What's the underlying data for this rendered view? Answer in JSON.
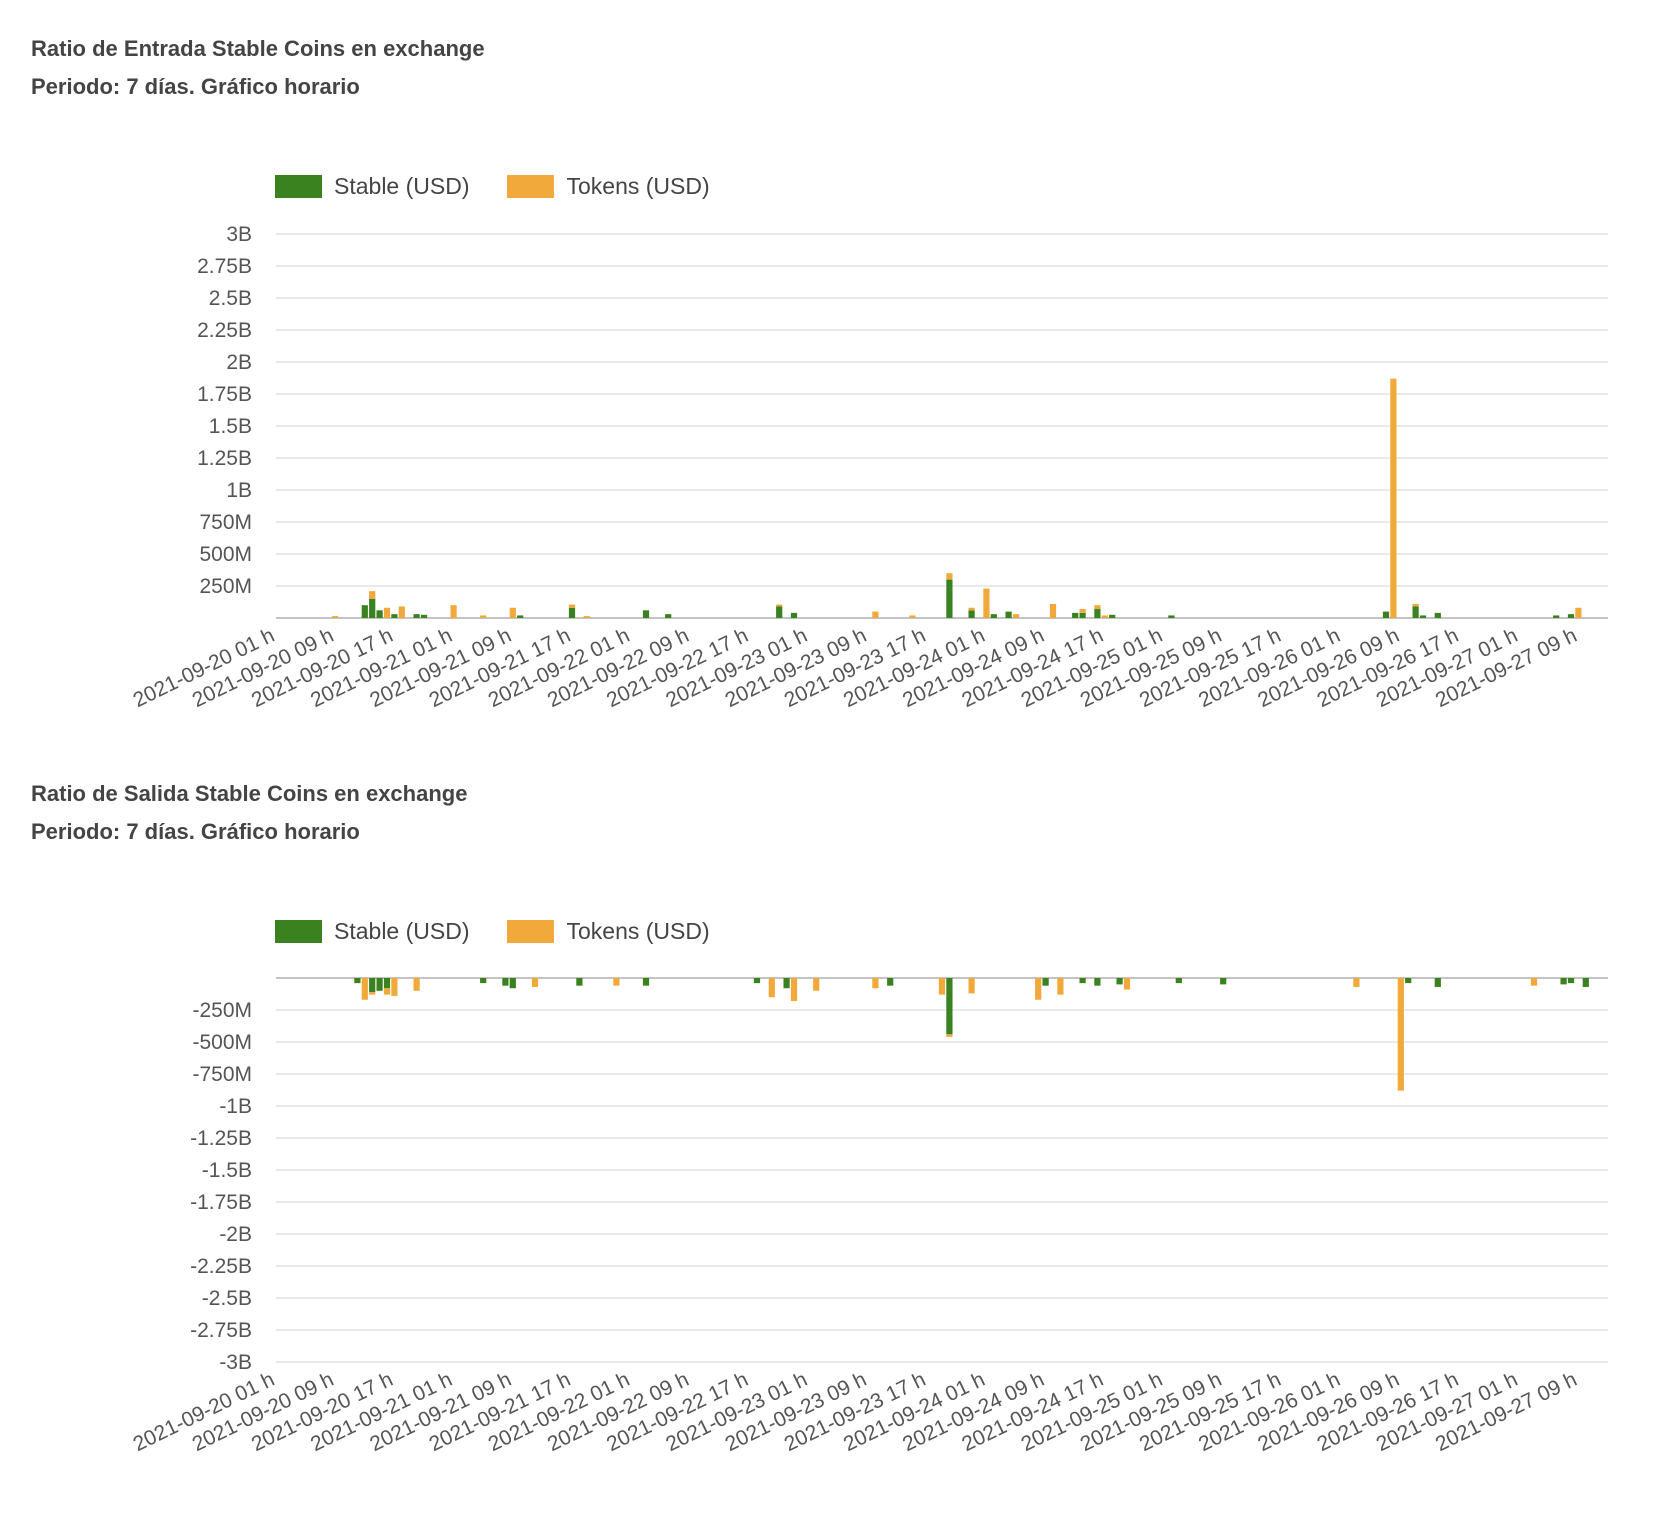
{
  "colors": {
    "stable": "#3a8220",
    "tokens": "#f2a93b",
    "grid": "#e3e3e3"
  },
  "chart_data": [
    {
      "type": "bar",
      "title": "Ratio de Entrada Stable Coins en exchange",
      "subtitle": "Periodo: 7 días. Gráfico horario",
      "legend": [
        "Stable (USD)",
        "Tokens (USD)"
      ],
      "legend_position": "top-left",
      "grid": true,
      "stacked": true,
      "ylim": [
        0,
        3000000000
      ],
      "yticks": [
        {
          "value": 3000000000,
          "label": "3B"
        },
        {
          "value": 2750000000,
          "label": "2.75B"
        },
        {
          "value": 2500000000,
          "label": "2.5B"
        },
        {
          "value": 2250000000,
          "label": "2.25B"
        },
        {
          "value": 2000000000,
          "label": "2B"
        },
        {
          "value": 1750000000,
          "label": "1.75B"
        },
        {
          "value": 1500000000,
          "label": "1.5B"
        },
        {
          "value": 1250000000,
          "label": "1.25B"
        },
        {
          "value": 1000000000,
          "label": "1B"
        },
        {
          "value": 750000000,
          "label": "750M"
        },
        {
          "value": 500000000,
          "label": "500M"
        },
        {
          "value": 250000000,
          "label": "250M"
        }
      ],
      "xticks": [
        "2021-09-20 01 h",
        "2021-09-20 09 h",
        "2021-09-20 17 h",
        "2021-09-21 01 h",
        "2021-09-21 09 h",
        "2021-09-21 17 h",
        "2021-09-22 01 h",
        "2021-09-22 09 h",
        "2021-09-22 17 h",
        "2021-09-23 01 h",
        "2021-09-23 09 h",
        "2021-09-23 17 h",
        "2021-09-24 01 h",
        "2021-09-24 09 h",
        "2021-09-24 17 h",
        "2021-09-25 01 h",
        "2021-09-25 09 h",
        "2021-09-25 17 h",
        "2021-09-26 01 h",
        "2021-09-26 09 h",
        "2021-09-26 17 h",
        "2021-09-27 01 h",
        "2021-09-27 09 h"
      ],
      "series": [
        {
          "name": "Stable (USD)",
          "points": [
            {
              "x": "2021-09-20 13 h",
              "y": 100000000
            },
            {
              "x": "2021-09-20 14 h",
              "y": 150000000
            },
            {
              "x": "2021-09-20 15 h",
              "y": 60000000
            },
            {
              "x": "2021-09-20 17 h",
              "y": 30000000
            },
            {
              "x": "2021-09-20 20 h",
              "y": 30000000
            },
            {
              "x": "2021-09-20 21 h",
              "y": 25000000
            },
            {
              "x": "2021-09-21 10 h",
              "y": 20000000
            },
            {
              "x": "2021-09-21 17 h",
              "y": 80000000
            },
            {
              "x": "2021-09-22 03 h",
              "y": 60000000
            },
            {
              "x": "2021-09-22 06 h",
              "y": 30000000
            },
            {
              "x": "2021-09-22 21 h",
              "y": 90000000
            },
            {
              "x": "2021-09-22 23 h",
              "y": 40000000
            },
            {
              "x": "2021-09-23 20 h",
              "y": 300000000
            },
            {
              "x": "2021-09-23 23 h",
              "y": 60000000
            },
            {
              "x": "2021-09-24 02 h",
              "y": 30000000
            },
            {
              "x": "2021-09-24 04 h",
              "y": 50000000
            },
            {
              "x": "2021-09-24 13 h",
              "y": 40000000
            },
            {
              "x": "2021-09-24 14 h",
              "y": 40000000
            },
            {
              "x": "2021-09-24 16 h",
              "y": 70000000
            },
            {
              "x": "2021-09-24 18 h",
              "y": 25000000
            },
            {
              "x": "2021-09-25 02 h",
              "y": 20000000
            },
            {
              "x": "2021-09-26 07 h",
              "y": 50000000
            },
            {
              "x": "2021-09-26 11 h",
              "y": 90000000
            },
            {
              "x": "2021-09-26 12 h",
              "y": 20000000
            },
            {
              "x": "2021-09-26 14 h",
              "y": 40000000
            },
            {
              "x": "2021-09-27 06 h",
              "y": 20000000
            },
            {
              "x": "2021-09-27 08 h",
              "y": 30000000
            }
          ]
        },
        {
          "name": "Tokens (USD)",
          "points": [
            {
              "x": "2021-09-20 09 h",
              "y": 15000000
            },
            {
              "x": "2021-09-20 14 h",
              "y": 60000000
            },
            {
              "x": "2021-09-20 16 h",
              "y": 80000000
            },
            {
              "x": "2021-09-20 18 h",
              "y": 90000000
            },
            {
              "x": "2021-09-21 01 h",
              "y": 100000000
            },
            {
              "x": "2021-09-21 05 h",
              "y": 20000000
            },
            {
              "x": "2021-09-21 09 h",
              "y": 80000000
            },
            {
              "x": "2021-09-21 17 h",
              "y": 25000000
            },
            {
              "x": "2021-09-21 19 h",
              "y": 15000000
            },
            {
              "x": "2021-09-22 21 h",
              "y": 15000000
            },
            {
              "x": "2021-09-23 10 h",
              "y": 50000000
            },
            {
              "x": "2021-09-23 15 h",
              "y": 20000000
            },
            {
              "x": "2021-09-23 20 h",
              "y": 50000000
            },
            {
              "x": "2021-09-23 23 h",
              "y": 20000000
            },
            {
              "x": "2021-09-24 01 h",
              "y": 230000000
            },
            {
              "x": "2021-09-24 05 h",
              "y": 30000000
            },
            {
              "x": "2021-09-24 10 h",
              "y": 110000000
            },
            {
              "x": "2021-09-24 14 h",
              "y": 30000000
            },
            {
              "x": "2021-09-24 16 h",
              "y": 30000000
            },
            {
              "x": "2021-09-24 17 h",
              "y": 20000000
            },
            {
              "x": "2021-09-26 08 h",
              "y": 1870000000
            },
            {
              "x": "2021-09-26 11 h",
              "y": 20000000
            },
            {
              "x": "2021-09-27 09 h",
              "y": 80000000
            }
          ]
        }
      ]
    },
    {
      "type": "bar",
      "title": "Ratio de Salida Stable Coins en exchange",
      "subtitle": "Periodo: 7 días. Gráfico horario",
      "legend": [
        "Stable (USD)",
        "Tokens (USD)"
      ],
      "legend_position": "top-left",
      "grid": true,
      "stacked": true,
      "ylim": [
        -3000000000,
        0
      ],
      "yticks": [
        {
          "value": -250000000,
          "label": "-250M"
        },
        {
          "value": -500000000,
          "label": "-500M"
        },
        {
          "value": -750000000,
          "label": "-750M"
        },
        {
          "value": -1000000000,
          "label": "-1B"
        },
        {
          "value": -1250000000,
          "label": "-1.25B"
        },
        {
          "value": -1500000000,
          "label": "-1.5B"
        },
        {
          "value": -1750000000,
          "label": "-1.75B"
        },
        {
          "value": -2000000000,
          "label": "-2B"
        },
        {
          "value": -2250000000,
          "label": "-2.25B"
        },
        {
          "value": -2500000000,
          "label": "-2.5B"
        },
        {
          "value": -2750000000,
          "label": "-2.75B"
        },
        {
          "value": -3000000000,
          "label": "-3B"
        }
      ],
      "xticks": [
        "2021-09-20 01 h",
        "2021-09-20 09 h",
        "2021-09-20 17 h",
        "2021-09-21 01 h",
        "2021-09-21 09 h",
        "2021-09-21 17 h",
        "2021-09-22 01 h",
        "2021-09-22 09 h",
        "2021-09-22 17 h",
        "2021-09-23 01 h",
        "2021-09-23 09 h",
        "2021-09-23 17 h",
        "2021-09-24 01 h",
        "2021-09-24 09 h",
        "2021-09-24 17 h",
        "2021-09-25 01 h",
        "2021-09-25 09 h",
        "2021-09-25 17 h",
        "2021-09-26 01 h",
        "2021-09-26 09 h",
        "2021-09-26 17 h",
        "2021-09-27 01 h",
        "2021-09-27 09 h"
      ],
      "series": [
        {
          "name": "Stable (USD)",
          "points": [
            {
              "x": "2021-09-20 12 h",
              "y": -40000000
            },
            {
              "x": "2021-09-20 14 h",
              "y": -110000000
            },
            {
              "x": "2021-09-20 15 h",
              "y": -100000000
            },
            {
              "x": "2021-09-20 16 h",
              "y": -80000000
            },
            {
              "x": "2021-09-21 05 h",
              "y": -40000000
            },
            {
              "x": "2021-09-21 08 h",
              "y": -60000000
            },
            {
              "x": "2021-09-21 09 h",
              "y": -80000000
            },
            {
              "x": "2021-09-21 18 h",
              "y": -60000000
            },
            {
              "x": "2021-09-22 03 h",
              "y": -60000000
            },
            {
              "x": "2021-09-22 18 h",
              "y": -40000000
            },
            {
              "x": "2021-09-22 22 h",
              "y": -80000000
            },
            {
              "x": "2021-09-23 12 h",
              "y": -60000000
            },
            {
              "x": "2021-09-23 20 h",
              "y": -440000000
            },
            {
              "x": "2021-09-24 09 h",
              "y": -60000000
            },
            {
              "x": "2021-09-24 14 h",
              "y": -40000000
            },
            {
              "x": "2021-09-24 16 h",
              "y": -60000000
            },
            {
              "x": "2021-09-24 19 h",
              "y": -50000000
            },
            {
              "x": "2021-09-25 03 h",
              "y": -40000000
            },
            {
              "x": "2021-09-25 09 h",
              "y": -50000000
            },
            {
              "x": "2021-09-26 10 h",
              "y": -40000000
            },
            {
              "x": "2021-09-26 14 h",
              "y": -70000000
            },
            {
              "x": "2021-09-27 07 h",
              "y": -50000000
            },
            {
              "x": "2021-09-27 08 h",
              "y": -40000000
            },
            {
              "x": "2021-09-27 10 h",
              "y": -70000000
            }
          ]
        },
        {
          "name": "Tokens (USD)",
          "points": [
            {
              "x": "2021-09-20 13 h",
              "y": -170000000
            },
            {
              "x": "2021-09-20 14 h",
              "y": -20000000
            },
            {
              "x": "2021-09-20 16 h",
              "y": -50000000
            },
            {
              "x": "2021-09-20 17 h",
              "y": -140000000
            },
            {
              "x": "2021-09-20 20 h",
              "y": -100000000
            },
            {
              "x": "2021-09-21 12 h",
              "y": -70000000
            },
            {
              "x": "2021-09-21 23 h",
              "y": -60000000
            },
            {
              "x": "2021-09-22 20 h",
              "y": -150000000
            },
            {
              "x": "2021-09-22 23 h",
              "y": -180000000
            },
            {
              "x": "2021-09-23 02 h",
              "y": -100000000
            },
            {
              "x": "2021-09-23 10 h",
              "y": -80000000
            },
            {
              "x": "2021-09-23 19 h",
              "y": -130000000
            },
            {
              "x": "2021-09-23 20 h",
              "y": -20000000
            },
            {
              "x": "2021-09-23 23 h",
              "y": -120000000
            },
            {
              "x": "2021-09-24 08 h",
              "y": -170000000
            },
            {
              "x": "2021-09-24 11 h",
              "y": -130000000
            },
            {
              "x": "2021-09-24 20 h",
              "y": -90000000
            },
            {
              "x": "2021-09-26 03 h",
              "y": -70000000
            },
            {
              "x": "2021-09-26 09 h",
              "y": -880000000
            },
            {
              "x": "2021-09-27 03 h",
              "y": -60000000
            }
          ]
        }
      ]
    }
  ]
}
